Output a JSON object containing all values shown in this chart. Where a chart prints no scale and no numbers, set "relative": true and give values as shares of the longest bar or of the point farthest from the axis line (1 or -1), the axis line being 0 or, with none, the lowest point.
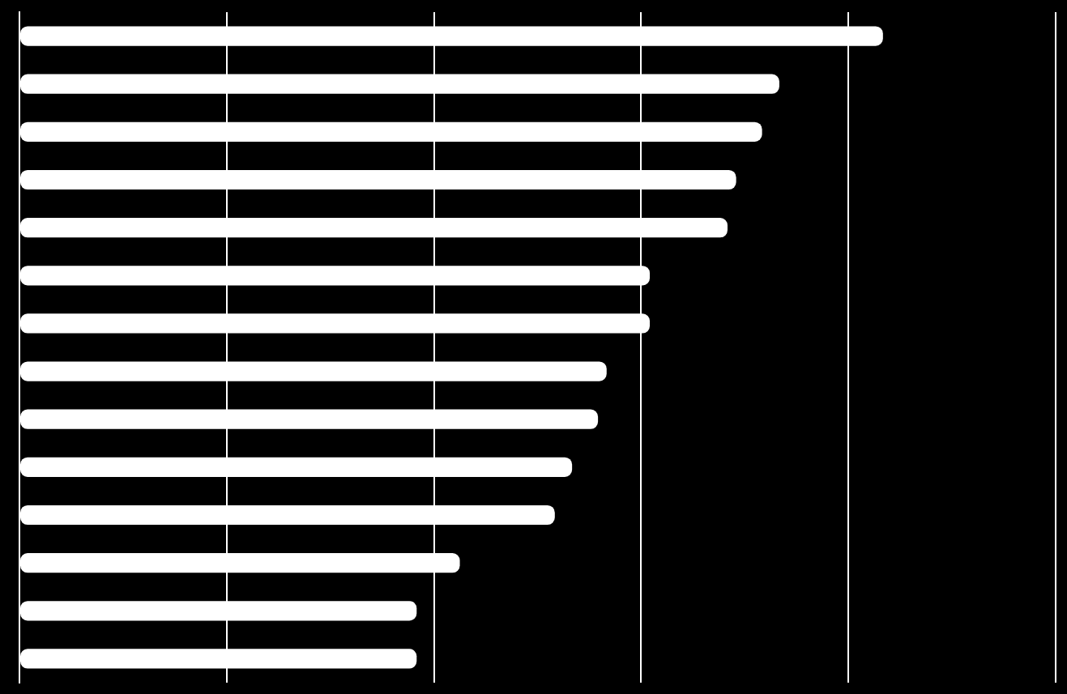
{
  "chart_data": {
    "type": "bar",
    "orientation": "horizontal",
    "relative": true,
    "categories": [
      null,
      null,
      null,
      null,
      null,
      null,
      null,
      null,
      null,
      null,
      null,
      null,
      null,
      null
    ],
    "values": [
      1,
      0.88,
      0.86,
      0.83,
      0.82,
      0.73,
      0.73,
      0.68,
      0.67,
      0.64,
      0.62,
      0.51,
      0.46,
      0.46
    ],
    "color": "#ffffff",
    "grid": "x"
  }
}
